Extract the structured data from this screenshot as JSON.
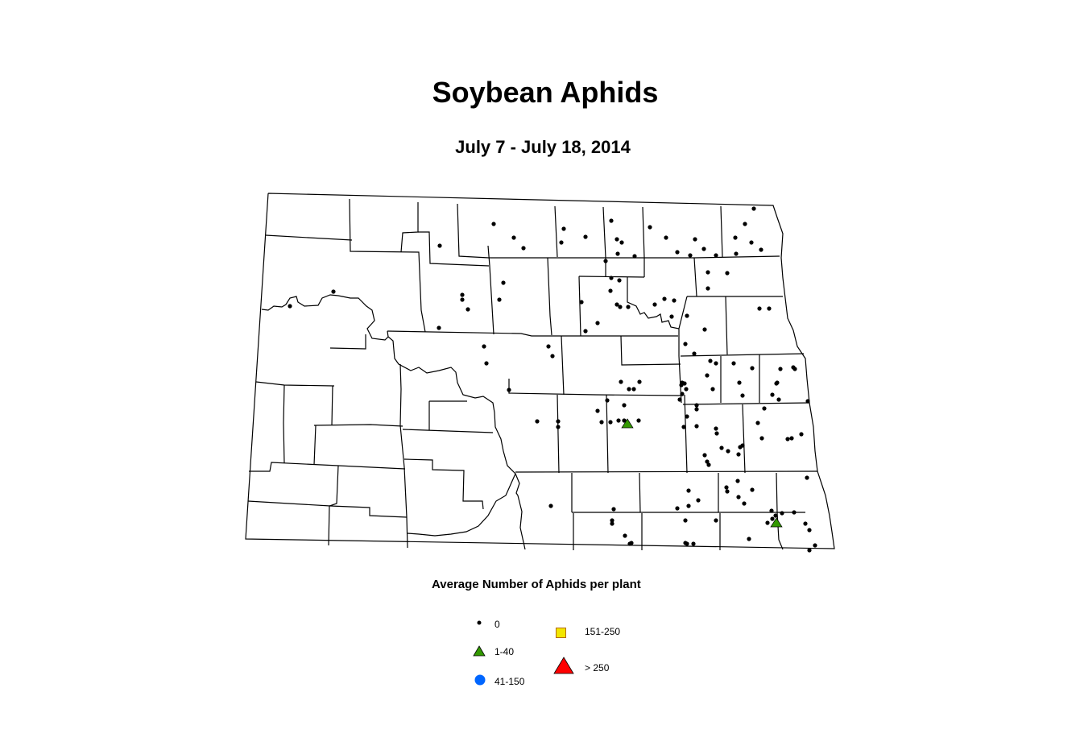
{
  "title": "Soybean Aphids",
  "subtitle": "July 7 - July 18, 2014",
  "legend": {
    "title": "Average Number of Aphids per plant",
    "items": [
      {
        "label": "0",
        "symbol": "small-dot",
        "color": "#000000"
      },
      {
        "label": "1-40",
        "symbol": "triangle",
        "color": "#339900"
      },
      {
        "label": "41-150",
        "symbol": "circle",
        "color": "#0066ff"
      },
      {
        "label": "151-250",
        "symbol": "square",
        "color": "#f2e600"
      },
      {
        "label": "> 250",
        "symbol": "large-triangle",
        "color": "#ff0000"
      }
    ]
  }
}
